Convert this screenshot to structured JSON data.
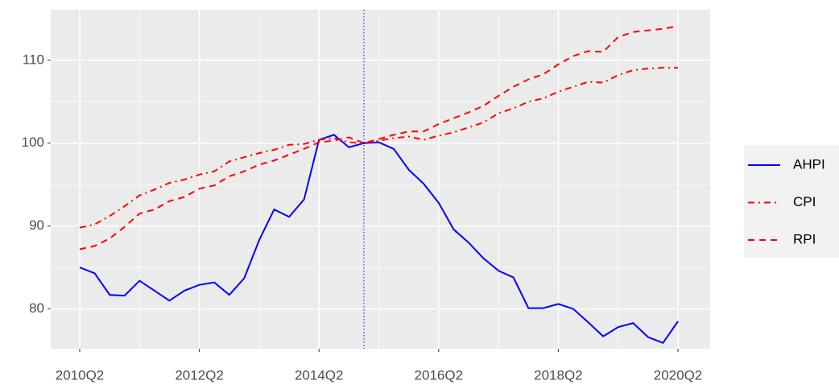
{
  "chart_data": {
    "type": "line",
    "categories": [
      "2010Q2",
      null,
      null,
      null,
      null,
      null,
      null,
      null,
      "2012Q2",
      null,
      null,
      null,
      null,
      null,
      null,
      null,
      "2014Q2",
      null,
      null,
      null,
      null,
      null,
      null,
      null,
      "2016Q2",
      null,
      null,
      null,
      null,
      null,
      null,
      null,
      "2018Q2",
      null,
      null,
      null,
      null,
      null,
      null,
      null,
      "2020Q2"
    ],
    "series": [
      {
        "name": "AHPI",
        "color": "#0000ff",
        "dash": "solid",
        "values": [
          85.0,
          84.3,
          81.7,
          81.6,
          83.4,
          82.2,
          81.0,
          82.2,
          82.9,
          83.2,
          81.7,
          83.7,
          88.3,
          92.0,
          91.1,
          93.2,
          100.4,
          101.0,
          99.5,
          100.0,
          100.1,
          99.3,
          96.8,
          95.1,
          92.8,
          89.6,
          88.0,
          86.1,
          84.6,
          83.8,
          80.1,
          80.1,
          80.6,
          80.0,
          78.4,
          76.7,
          77.8,
          78.3,
          76.6,
          75.9,
          78.5
        ]
      },
      {
        "name": "CPI",
        "color": "#ff0000",
        "dash": "dashdot",
        "values": [
          89.8,
          90.2,
          91.2,
          92.4,
          93.7,
          94.4,
          95.2,
          95.6,
          96.2,
          96.6,
          97.8,
          98.3,
          98.8,
          99.2,
          99.8,
          99.9,
          100.4,
          100.6,
          100.1,
          100.0,
          100.3,
          100.6,
          100.8,
          100.4,
          100.9,
          101.3,
          101.9,
          102.5,
          103.6,
          104.2,
          105.0,
          105.4,
          106.2,
          106.8,
          107.4,
          107.3,
          108.2,
          108.8,
          109.0,
          109.1,
          109.1
        ]
      },
      {
        "name": "RPI",
        "color": "#ff0000",
        "dash": "dashed",
        "values": [
          87.2,
          87.6,
          88.5,
          89.9,
          91.5,
          92.0,
          93.0,
          93.5,
          94.5,
          94.9,
          96.0,
          96.6,
          97.4,
          97.9,
          98.6,
          99.3,
          100.1,
          100.3,
          100.7,
          100.0,
          100.5,
          101.0,
          101.4,
          101.4,
          102.3,
          103.0,
          103.7,
          104.5,
          105.7,
          106.8,
          107.7,
          108.3,
          109.5,
          110.5,
          111.1,
          111.0,
          112.8,
          113.4,
          113.6,
          113.8,
          114.1
        ]
      }
    ],
    "ylim": [
      75.2,
      116.1
    ],
    "yticks": [
      80,
      90,
      100,
      110
    ],
    "grid": true,
    "minor_grid": true,
    "reference_line": {
      "x_index": 19,
      "color": "#0000ff"
    },
    "legend": "right"
  }
}
